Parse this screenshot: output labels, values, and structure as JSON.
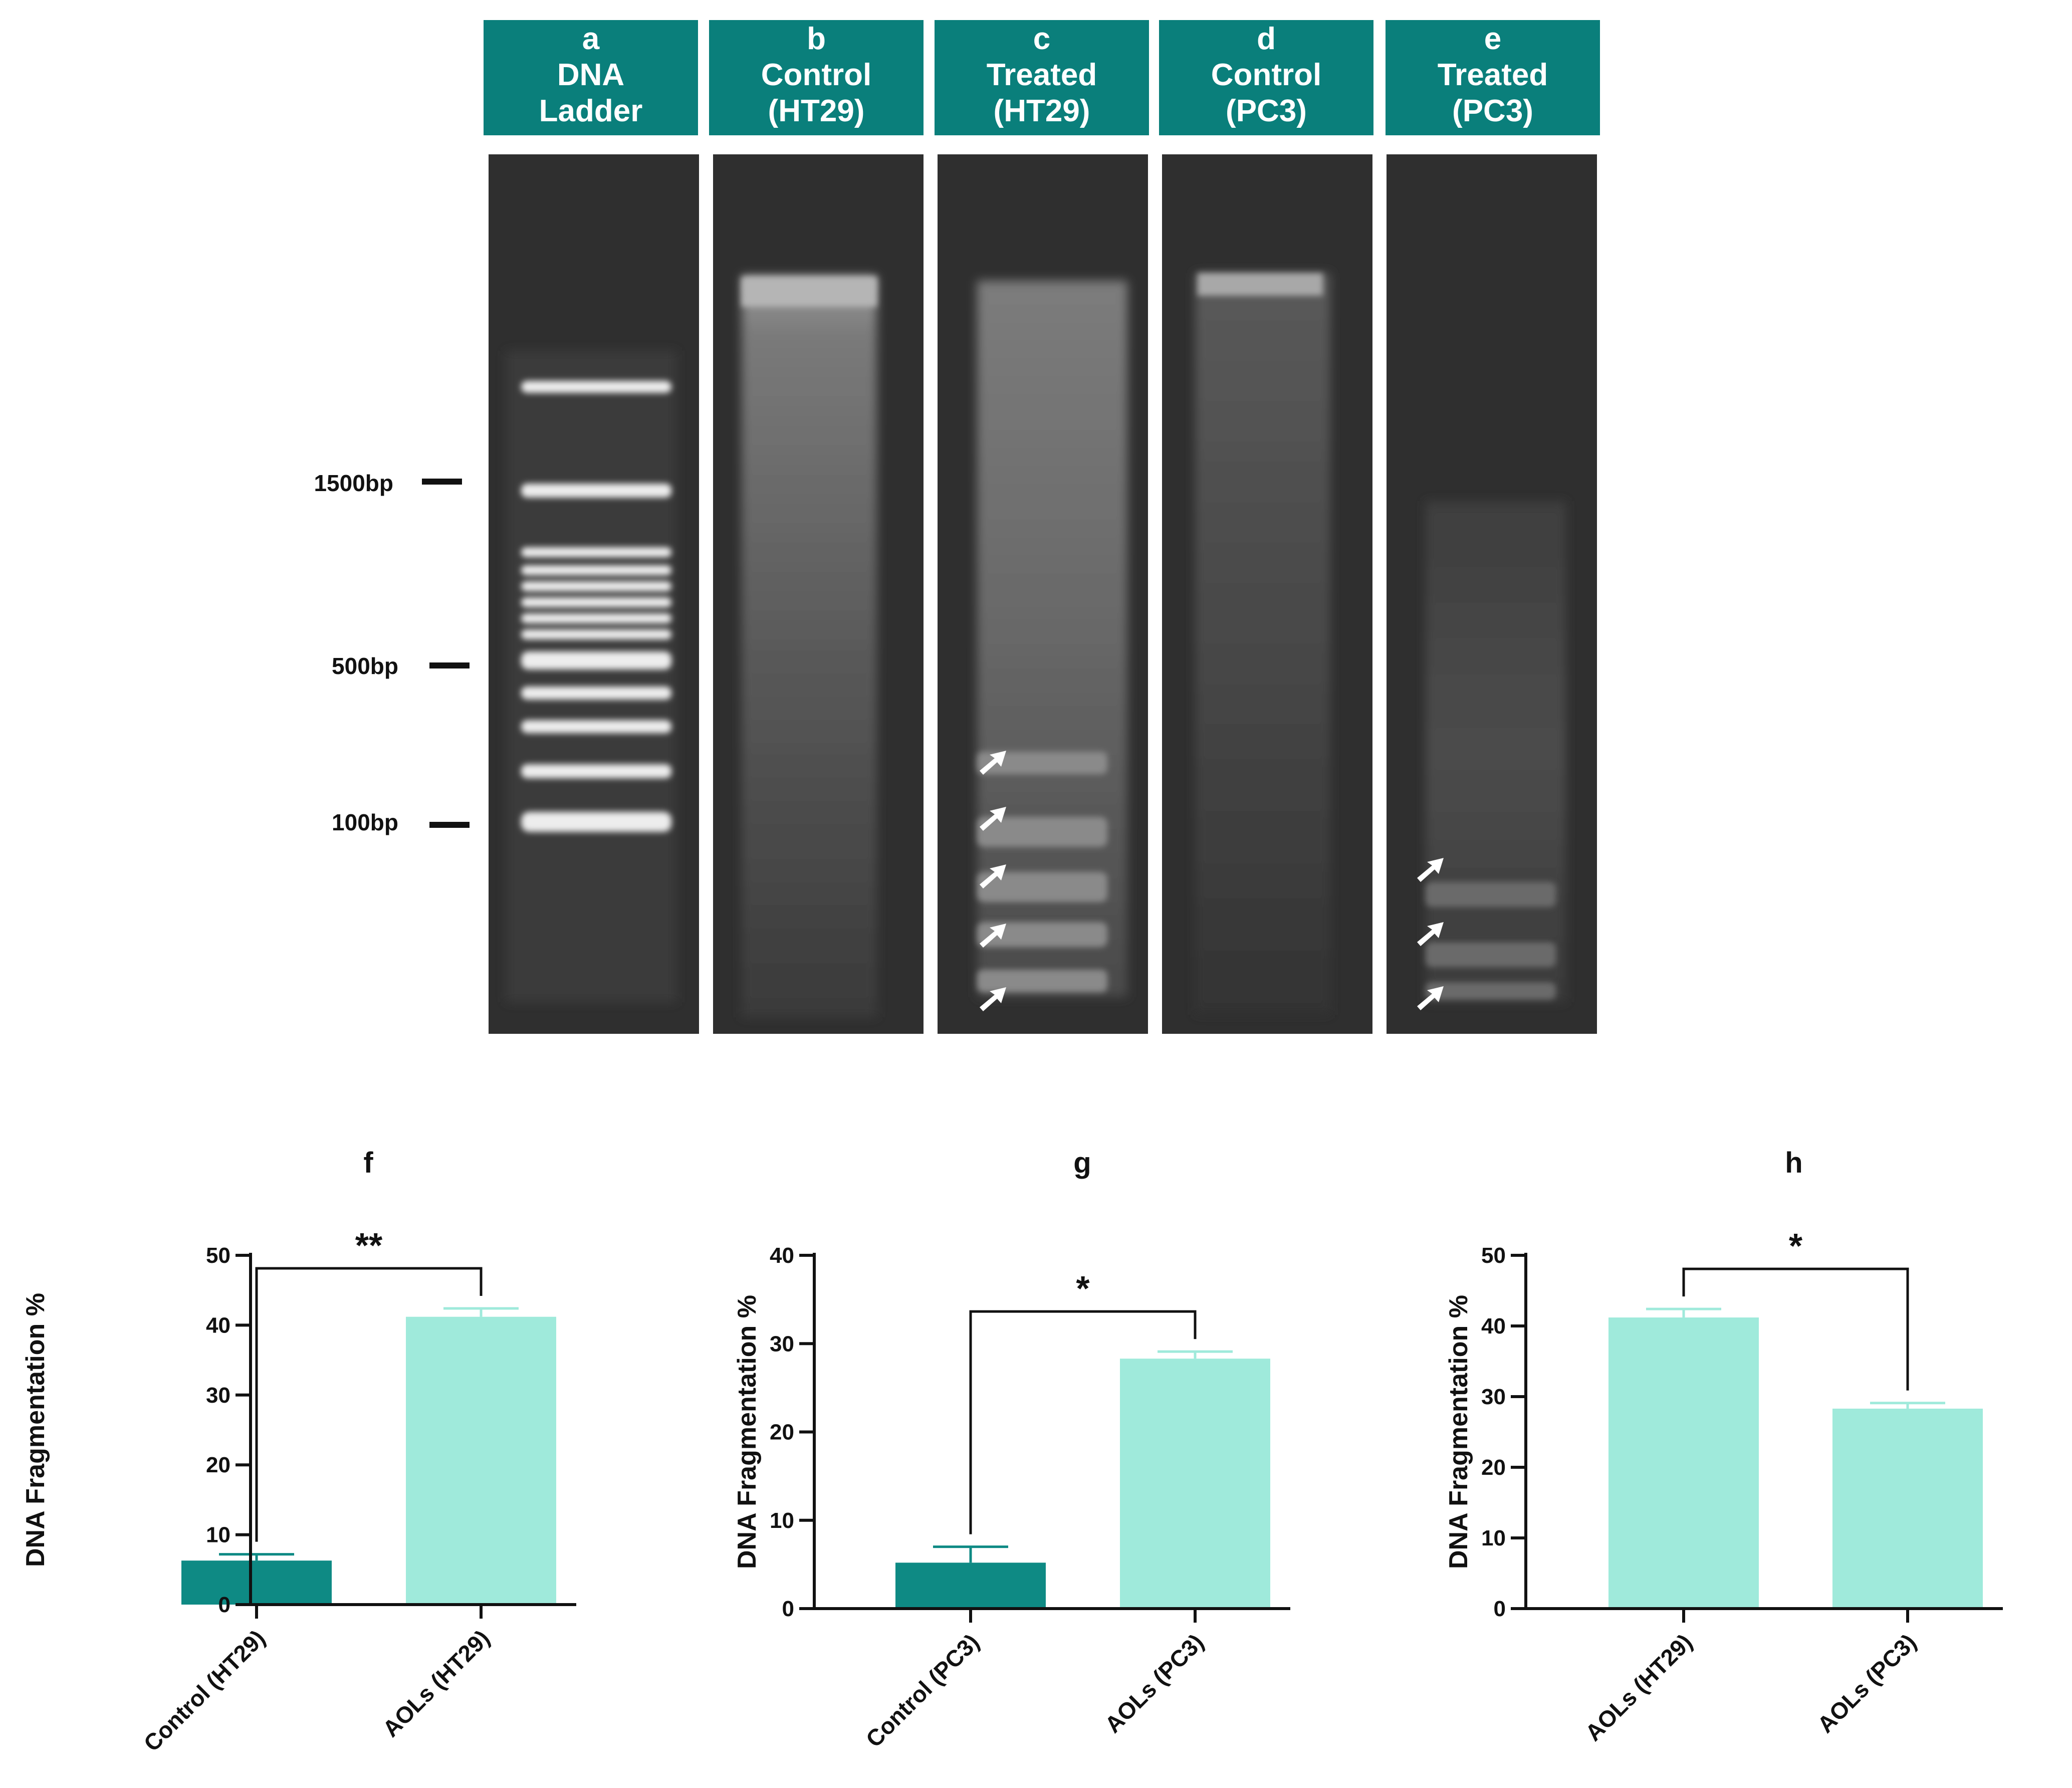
{
  "gel": {
    "lanes": [
      {
        "letter": "a",
        "line1": "DNA",
        "line2": "Ladder",
        "color": "#0a7f7b"
      },
      {
        "letter": "b",
        "line1": "Control",
        "line2": "(HT29)",
        "color": "#0a7f7b"
      },
      {
        "letter": "c",
        "line1": "Treated",
        "line2": "(HT29)",
        "color": "#0a7f7b"
      },
      {
        "letter": "d",
        "line1": "Control",
        "line2": "(PC3)",
        "color": "#0a7f7b"
      },
      {
        "letter": "e",
        "line1": "Treated",
        "line2": "(PC3)",
        "color": "#0a7f7b"
      }
    ],
    "size_markers": [
      "1500bp",
      "500bp",
      "100bp"
    ]
  },
  "chart_data": [
    {
      "type": "bar",
      "panel": "f",
      "categories": [
        "Control (HT29)",
        "AOLs (HT29)"
      ],
      "values": [
        6.3,
        41.2
      ],
      "errors": [
        0.9,
        1.2
      ],
      "colors": [
        "#0e8a84",
        "#9feadb"
      ],
      "ylabel": "DNA Fragmentation %",
      "ylim": [
        0,
        50
      ],
      "yticks": [
        0,
        10,
        20,
        30,
        40,
        50
      ],
      "significance": {
        "from": 0,
        "to": 1,
        "label": "**"
      }
    },
    {
      "type": "bar",
      "panel": "g",
      "categories": [
        "Control (PC3)",
        "AOLs (PC3)"
      ],
      "values": [
        5.2,
        28.3
      ],
      "errors": [
        1.8,
        0.8
      ],
      "colors": [
        "#0e8a84",
        "#9feadb"
      ],
      "ylabel": "DNA Fragmentation %",
      "ylim": [
        0,
        40
      ],
      "yticks": [
        0,
        10,
        20,
        30,
        40
      ],
      "significance": {
        "from": 0,
        "to": 1,
        "label": "*"
      }
    },
    {
      "type": "bar",
      "panel": "h",
      "categories": [
        "AOLs (HT29)",
        "AOLs (PC3)"
      ],
      "values": [
        41.2,
        28.3
      ],
      "errors": [
        1.2,
        0.8
      ],
      "colors": [
        "#9feadb",
        "#9feadb"
      ],
      "ylabel": "DNA Fragmentation %",
      "ylim": [
        0,
        50
      ],
      "yticks": [
        0,
        10,
        20,
        30,
        40,
        50
      ],
      "significance": {
        "from": 0,
        "to": 1,
        "label": "*"
      }
    }
  ]
}
